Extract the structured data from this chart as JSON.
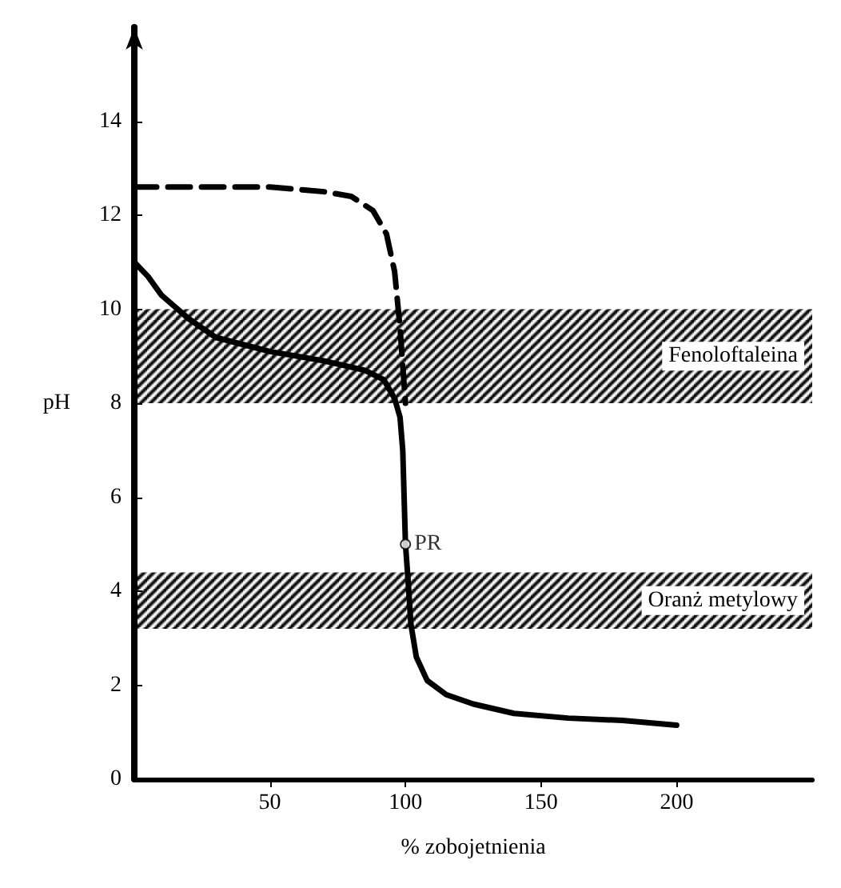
{
  "chart_data": {
    "type": "line",
    "xlabel": "% zobojetnienia",
    "ylabel": "pH",
    "xlim": [
      0,
      250
    ],
    "xticks": [
      50,
      100,
      150,
      200
    ],
    "ylim": [
      0,
      16
    ],
    "yticks": [
      0,
      2,
      4,
      6,
      8,
      10,
      12,
      14
    ],
    "grid": false,
    "marker": "none",
    "series": [
      {
        "color": "#000000",
        "line_style": "dashed",
        "x": [
          0,
          25,
          50,
          70,
          80,
          88,
          93,
          96,
          98,
          99,
          100
        ],
        "values": [
          12.6,
          12.6,
          12.6,
          12.5,
          12.4,
          12.1,
          11.6,
          10.8,
          9.6,
          8.8,
          8
        ]
      },
      {
        "color": "#000000",
        "line_style": "solid",
        "x": [
          0,
          5,
          10,
          20,
          30,
          50,
          70,
          85,
          92,
          96,
          98,
          99,
          100,
          101,
          102,
          104,
          108,
          115,
          125,
          140,
          160,
          180,
          200
        ],
        "values": [
          11,
          10.7,
          10.3,
          9.8,
          9.4,
          9.1,
          8.9,
          8.7,
          8.5,
          8.1,
          7.7,
          7,
          5,
          4.2,
          3.3,
          2.6,
          2.1,
          1.8,
          1.6,
          1.4,
          1.3,
          1.25,
          1.15
        ]
      }
    ],
    "bands": [
      {
        "axis": "y",
        "from": 8,
        "to": 10,
        "label": "Fenoloftaleina",
        "color": "#000000"
      },
      {
        "axis": "y",
        "from": 3.2,
        "to": 4.4,
        "label": "Oranż metylowy",
        "color": "#000000"
      }
    ],
    "annotations": [
      {
        "text": "PR",
        "x": 100,
        "y": 5
      }
    ]
  }
}
